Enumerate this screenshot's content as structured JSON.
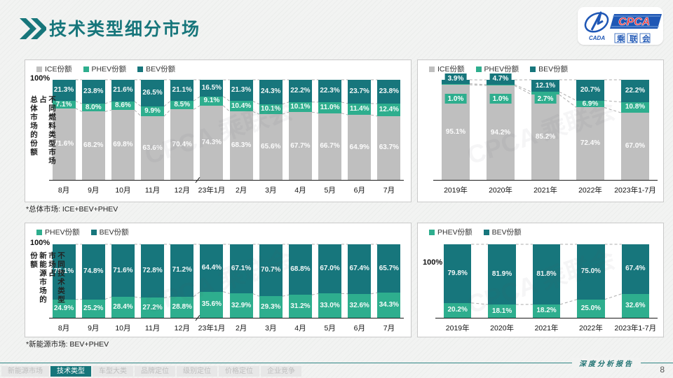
{
  "colors": {
    "ice": "#BFBFBF",
    "phev": "#2EAE8E",
    "bev": "#17767C",
    "accent": "#17767B",
    "dash": "#ADADAD"
  },
  "header": {
    "title": "技术类型细分市场",
    "logo": {
      "abbr": "CPCA",
      "cn": "乘联会",
      "emblem": "CADA"
    }
  },
  "watermark": "CPCA 乘联会",
  "footnotes": {
    "total": "*总体市场: ICE+BEV+PHEV",
    "nev": "*新能源市场: BEV+PHEV"
  },
  "footer": {
    "report_label": "深度分析报告",
    "page_number": "8",
    "tabs": [
      {
        "label": "新能源市场",
        "active": false
      },
      {
        "label": "技术类型",
        "active": true
      },
      {
        "label": "车型大类",
        "active": false
      },
      {
        "label": "品牌定位",
        "active": false
      },
      {
        "label": "级别定位",
        "active": false
      },
      {
        "label": "价格定位",
        "active": false
      },
      {
        "label": "企业竞争",
        "active": false
      }
    ]
  },
  "chart_data": [
    {
      "id": "fuel-type-share-of-total-market-monthly",
      "type": "bar",
      "stacked": true,
      "unit": "%",
      "ylabel": "100%",
      "ylabel_top": 20,
      "ylim": [
        0,
        100
      ],
      "grid": false,
      "legend_position": "top-left",
      "axis_title": [
        "不同燃料类型市场占",
        "总体市场的份额"
      ],
      "categories": [
        "8月",
        "9月",
        "10月",
        "11月",
        "12月",
        "23年1月",
        "2月",
        "3月",
        "4月",
        "5月",
        "6月",
        "7月"
      ],
      "axis_break_after": 4,
      "bar_ratio": 0.78,
      "series": [
        {
          "name": "ICE份额",
          "key": "ice",
          "values": [
            71.6,
            68.2,
            69.8,
            63.6,
            70.4,
            74.3,
            68.3,
            65.6,
            67.7,
            66.7,
            64.9,
            63.7
          ]
        },
        {
          "name": "PHEV份额",
          "key": "phev",
          "values": [
            7.1,
            8.0,
            8.6,
            9.9,
            8.5,
            9.1,
            10.4,
            10.1,
            10.1,
            11.0,
            11.4,
            12.4
          ]
        },
        {
          "name": "BEV份额",
          "key": "bev",
          "values": [
            21.3,
            23.8,
            21.6,
            26.5,
            21.1,
            16.5,
            21.3,
            24.3,
            22.2,
            22.3,
            23.7,
            23.8
          ]
        }
      ]
    },
    {
      "id": "fuel-type-share-of-total-market-yearly",
      "type": "bar",
      "stacked": true,
      "unit": "%",
      "ylabel": null,
      "ylim": [
        0,
        100
      ],
      "grid": false,
      "legend_position": "top-left",
      "axis_title": null,
      "categories": [
        "2019年",
        "2020年",
        "2021年",
        "2022年",
        "2023年1-7月"
      ],
      "axis_break_after": null,
      "bar_ratio": 0.62,
      "series": [
        {
          "name": "ICE份额",
          "key": "ice",
          "values": [
            95.1,
            94.2,
            85.2,
            72.4,
            67.0
          ]
        },
        {
          "name": "PHEV份额",
          "key": "phev",
          "values": [
            1.0,
            1.0,
            2.7,
            6.9,
            10.8
          ]
        },
        {
          "name": "BEV份额",
          "key": "bev",
          "values": [
            3.9,
            4.7,
            12.1,
            20.7,
            22.2
          ]
        }
      ]
    },
    {
      "id": "tech-type-share-of-nev-market-monthly",
      "type": "bar",
      "stacked": true,
      "unit": "%",
      "ylabel": "100%",
      "ylabel_top": 22,
      "ylim": [
        0,
        100
      ],
      "grid": false,
      "legend_position": "top-left",
      "axis_title": [
        "不同技术类型市场占",
        "新能源市场的份额"
      ],
      "categories": [
        "8月",
        "9月",
        "10月",
        "11月",
        "12月",
        "23年1月",
        "2月",
        "3月",
        "4月",
        "5月",
        "6月",
        "7月"
      ],
      "axis_break_after": 4,
      "bar_ratio": 0.78,
      "series": [
        {
          "name": "PHEV份额",
          "key": "phev",
          "values": [
            24.9,
            25.2,
            28.4,
            27.2,
            28.8,
            35.6,
            32.9,
            29.3,
            31.2,
            33.0,
            32.6,
            34.3
          ]
        },
        {
          "name": "BEV份额",
          "key": "bev",
          "values": [
            75.1,
            74.8,
            71.6,
            72.8,
            71.2,
            64.4,
            67.1,
            70.7,
            68.8,
            67.0,
            67.4,
            65.7
          ]
        }
      ]
    },
    {
      "id": "tech-type-share-of-nev-market-yearly",
      "type": "bar",
      "stacked": true,
      "unit": "%",
      "ylabel": "100%",
      "ylabel_top": 50,
      "ylim": [
        0,
        100
      ],
      "grid": false,
      "legend_position": "top-left",
      "axis_title": null,
      "categories": [
        "2019年",
        "2020年",
        "2021年",
        "2022年",
        "2023年1-7月"
      ],
      "axis_break_after": null,
      "bar_ratio": 0.62,
      "series": [
        {
          "name": "PHEV份额",
          "key": "phev",
          "values": [
            20.2,
            18.1,
            18.2,
            25.0,
            32.6
          ]
        },
        {
          "name": "BEV份额",
          "key": "bev",
          "values": [
            79.8,
            81.9,
            81.8,
            75.0,
            67.4
          ]
        }
      ]
    }
  ]
}
